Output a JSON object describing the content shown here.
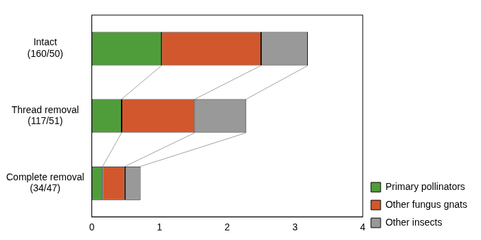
{
  "chart_data": {
    "type": "bar",
    "orientation": "horizontal",
    "stacked": true,
    "categories": [
      [
        "Intact",
        "(160/50)"
      ],
      [
        "Thread removal",
        "(117/51)"
      ],
      [
        "Complete removal",
        "(34/47)"
      ]
    ],
    "series": [
      {
        "name": "Primary pollinators",
        "color": "#4f9d3a",
        "values": [
          1.03,
          0.44,
          0.16
        ]
      },
      {
        "name": "Other fungus gnats",
        "color": "#d2572c",
        "values": [
          1.47,
          1.08,
          0.33
        ]
      },
      {
        "name": "Other insects",
        "color": "#999999",
        "values": [
          0.69,
          0.76,
          0.23
        ]
      }
    ],
    "xlim": [
      0,
      4
    ],
    "xticks": [
      0,
      1,
      2,
      3,
      4
    ],
    "grid": false,
    "legend": "lower right"
  }
}
